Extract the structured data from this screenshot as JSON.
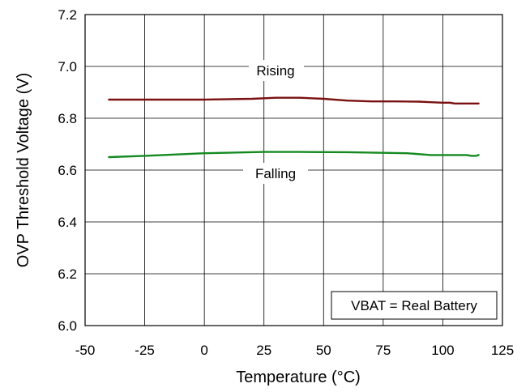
{
  "chart_data": {
    "type": "line",
    "title": "",
    "xlabel": "Temperature (°C)",
    "ylabel": "OVP Threshold Voltage (V)",
    "xlim": [
      -50,
      125
    ],
    "ylim": [
      6.0,
      7.2
    ],
    "x_ticks": [
      -50,
      -25,
      0,
      25,
      50,
      75,
      100,
      125
    ],
    "x_tick_labels": [
      "-50",
      "-25",
      "0",
      "25",
      "50",
      "75",
      "100",
      "125"
    ],
    "y_ticks": [
      6.0,
      6.2,
      6.4,
      6.6,
      6.8,
      7.0,
      7.2
    ],
    "y_tick_labels": [
      "6.0",
      "6.2",
      "6.4",
      "6.6",
      "6.8",
      "7.0",
      "7.2"
    ],
    "grid": true,
    "legend": "none",
    "annotation": "VBAT = Real Battery",
    "series": [
      {
        "name": "Rising",
        "color": "#7b1010",
        "x": [
          -40,
          -25,
          0,
          20,
          30,
          40,
          50,
          60,
          70,
          80,
          90,
          95,
          100,
          103,
          105,
          110,
          115
        ],
        "y": [
          6.872,
          6.872,
          6.872,
          6.875,
          6.879,
          6.879,
          6.875,
          6.868,
          6.865,
          6.865,
          6.864,
          6.862,
          6.86,
          6.86,
          6.857,
          6.857,
          6.857
        ]
      },
      {
        "name": "Falling",
        "color": "#138a1f",
        "x": [
          -40,
          -25,
          0,
          25,
          40,
          60,
          85,
          95,
          100,
          110,
          112,
          114,
          115
        ],
        "y": [
          6.65,
          6.655,
          6.665,
          6.67,
          6.67,
          6.669,
          6.665,
          6.658,
          6.658,
          6.658,
          6.655,
          6.655,
          6.658
        ]
      }
    ]
  }
}
